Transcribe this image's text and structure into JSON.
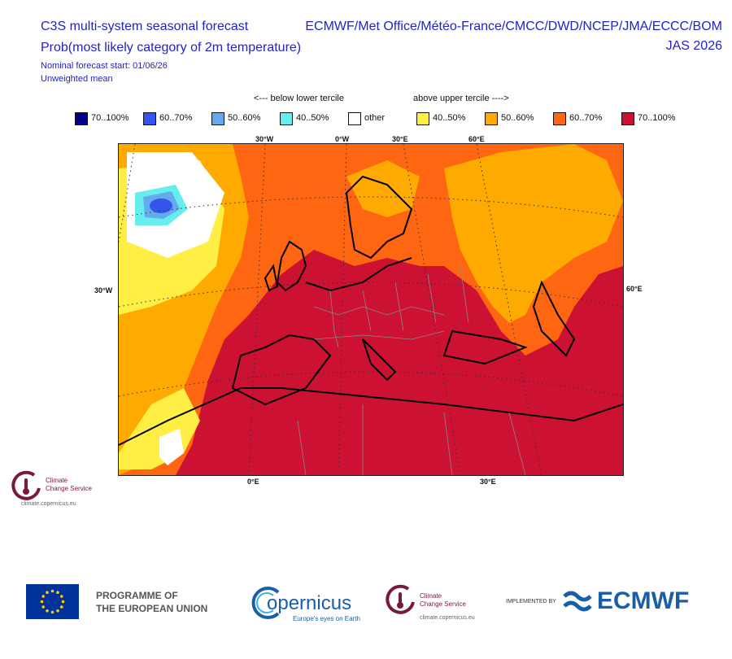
{
  "header": {
    "title": "C3S multi-system seasonal forecast",
    "subtitle": "Prob(most likely category of 2m temperature)",
    "start": "Nominal forecast start: 01/06/26",
    "mean": "Unweighted mean",
    "centres": "ECMWF/Met Office/Météo-France/CMCC/DWD/NCEP/JMA/ECCC/BOM",
    "period": "JAS 2026"
  },
  "legend": {
    "below_label": "<--- below lower tercile",
    "above_label": "above upper tercile ---->",
    "items": [
      {
        "label": "70..100%",
        "color": "#000088"
      },
      {
        "label": "60..70%",
        "color": "#3355ee"
      },
      {
        "label": "50..60%",
        "color": "#66aaee"
      },
      {
        "label": "40..50%",
        "color": "#66eeee"
      },
      {
        "label": "other",
        "color": "#ffffff"
      },
      {
        "label": "40..50%",
        "color": "#ffee44"
      },
      {
        "label": "50..60%",
        "color": "#ffaa00"
      },
      {
        "label": "60..70%",
        "color": "#ff6611"
      },
      {
        "label": "70..100%",
        "color": "#cc1133"
      }
    ]
  },
  "map": {
    "top_labels": [
      "30°W",
      "0°W",
      "30°E",
      "60°E"
    ],
    "bottom_labels": [
      "0°E",
      "30°E"
    ],
    "left_label": "30°W",
    "right_label": "60°E"
  },
  "small_logo": {
    "name_line1": "Climate",
    "name_line2": "Change Service",
    "url": "climate.copernicus.eu"
  },
  "footer": {
    "programme_line1": "PROGRAMME OF",
    "programme_line2": "THE EUROPEAN UNION",
    "copernicus": "opernicus",
    "copernicus_c": "C",
    "copernicus_tagline": "Europe's eyes on Earth",
    "ccs_line1": "Climate",
    "ccs_line2": "Change Service",
    "ccs_url": "climate.copernicus.eu",
    "implemented_by": "IMPLEMENTED BY",
    "ecmwf": "ECMWF"
  }
}
